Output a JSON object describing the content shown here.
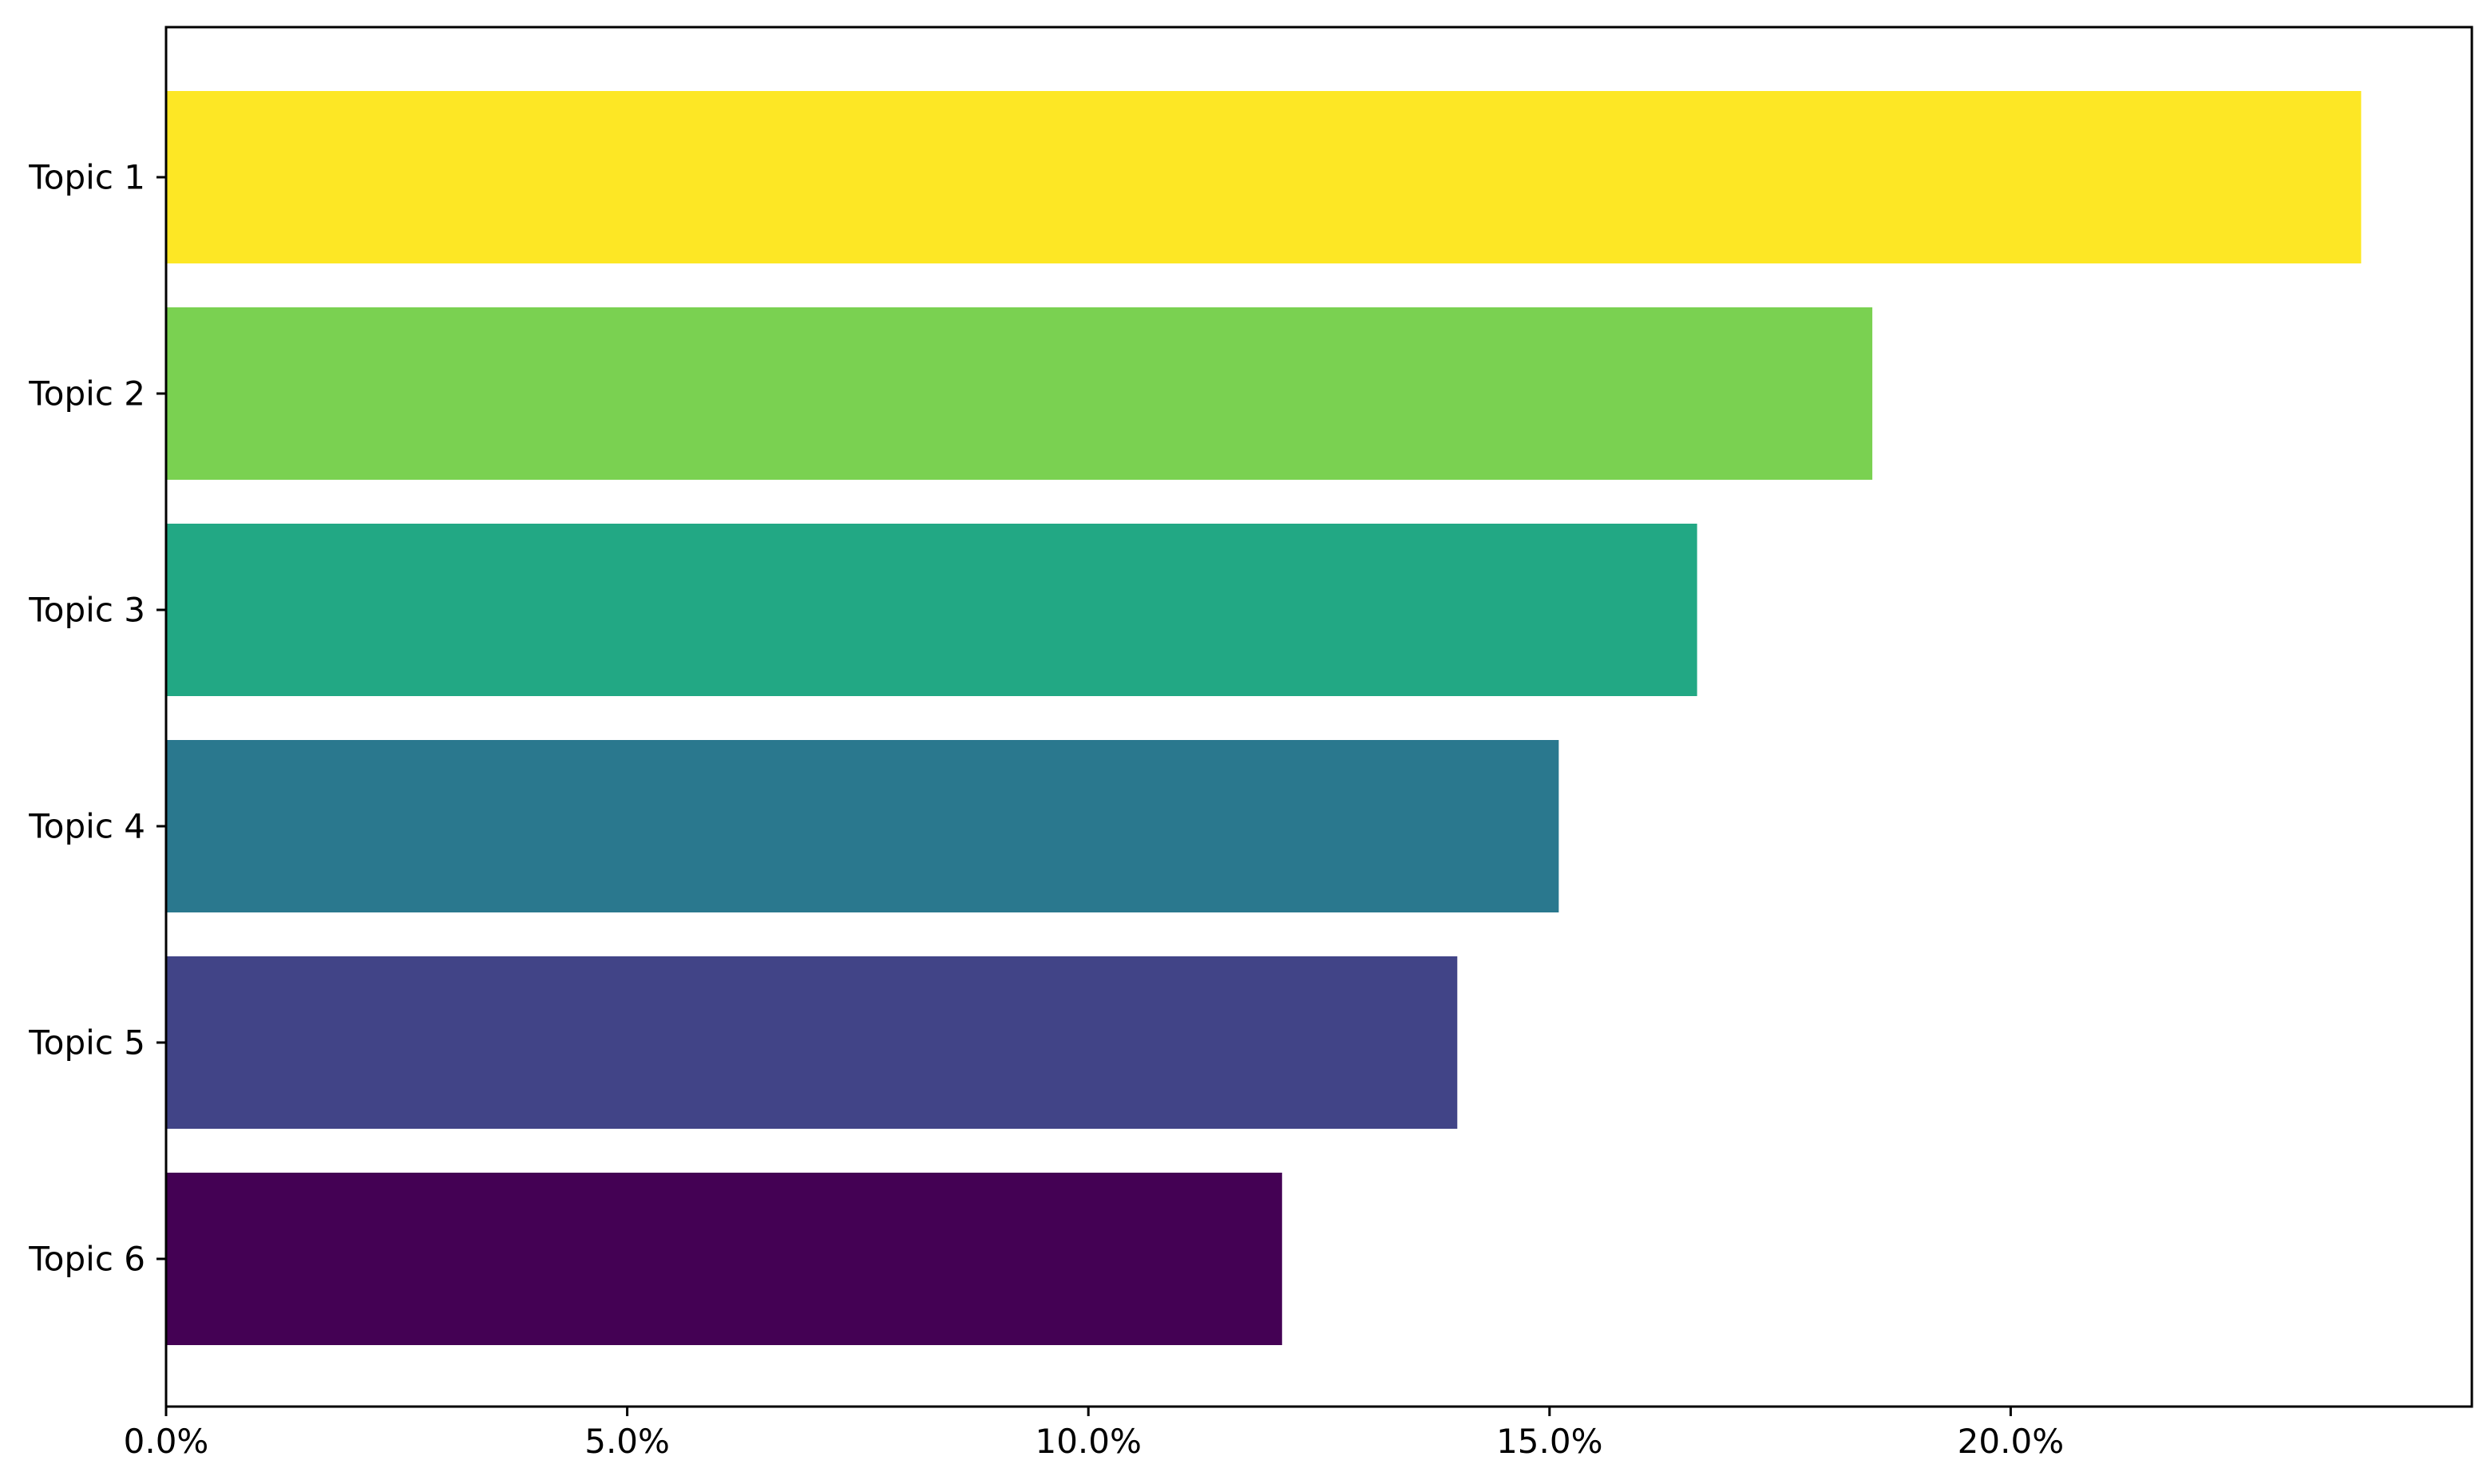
{
  "chart_data": {
    "type": "bar",
    "orientation": "horizontal",
    "title": "",
    "xlabel": "",
    "ylabel": "",
    "categories": [
      "Topic 1",
      "Topic 2",
      "Topic 3",
      "Topic 4",
      "Topic 5",
      "Topic 6"
    ],
    "values": [
      23.8,
      18.5,
      16.6,
      15.1,
      14.0,
      12.1
    ],
    "unit": "%",
    "colors": [
      "#FDE725",
      "#7AD151",
      "#22A884",
      "#2A788E",
      "#414487",
      "#440154"
    ],
    "xlim": [
      0,
      25.0
    ],
    "xticks": [
      0,
      5,
      10,
      15,
      20
    ],
    "xtick_labels": [
      "0.0%",
      "5.0%",
      "10.0%",
      "15.0%",
      "20.0%"
    ],
    "grid": false,
    "legend": "none"
  }
}
